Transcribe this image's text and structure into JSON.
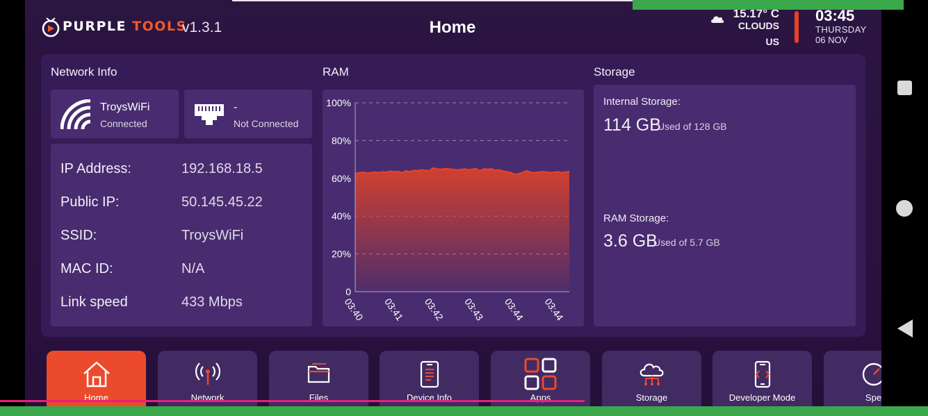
{
  "header": {
    "logo_text_1": "PURPLE",
    "logo_text_2": " TOOLS",
    "version": "v1.3.1",
    "title": "Home"
  },
  "weather": {
    "icon": "cloud-icon",
    "temperature": "15.17° C",
    "condition": "CLOUDS",
    "region": "US"
  },
  "clock": {
    "time": "03:45",
    "day": "THURSDAY",
    "date": "06 NOV"
  },
  "network_info": {
    "title": "Network Info",
    "wifi": {
      "name": "TroysWiFi",
      "status": "Connected",
      "icon": "wifi-icon"
    },
    "ethernet": {
      "name": "-",
      "status": "Not Connected",
      "icon": "ethernet-icon"
    },
    "rows": [
      {
        "label": "IP Address:",
        "value": "192.168.18.5"
      },
      {
        "label": "Public IP:",
        "value": "50.145.45.22"
      },
      {
        "label": "SSID:",
        "value": "TroysWiFi"
      },
      {
        "label": "MAC ID:",
        "value": "N/A"
      },
      {
        "label": "Link speed",
        "value": "433 Mbps"
      }
    ]
  },
  "ram": {
    "title": "RAM"
  },
  "chart_data": {
    "type": "area",
    "title": "",
    "xlabel": "",
    "ylabel": "",
    "ylim": [
      0,
      100
    ],
    "yticks": [
      "100%",
      "80%",
      "60%",
      "40%",
      "20%",
      "0"
    ],
    "xticks": [
      "03:40",
      "03:41",
      "03:42",
      "03:43",
      "03:44",
      "03:44"
    ],
    "grid": true,
    "values": [
      62.5,
      63.0,
      63.2,
      62.8,
      63.0,
      63.4,
      63.0,
      63.5,
      63.2,
      63.8,
      63.5,
      63.6,
      63.0,
      64.0,
      63.5,
      64.2,
      64.0,
      64.5,
      64.2,
      64.0,
      65.5,
      65.0,
      64.8,
      65.2,
      65.0,
      64.8,
      64.5,
      64.6,
      65.0,
      64.5,
      64.8,
      65.2,
      64.0,
      65.0,
      64.8,
      65.0,
      64.2,
      64.5,
      63.8,
      63.5,
      63.0,
      62.0,
      62.5,
      63.0,
      64.0,
      63.2,
      63.0,
      63.2,
      63.5,
      63.4,
      63.0,
      63.2,
      63.5,
      63.0,
      63.3,
      63.6
    ],
    "color": "#e2452c"
  },
  "storage": {
    "title": "Storage",
    "internal": {
      "label": "Internal Storage:",
      "used": "114 GB",
      "of_text": "Used of 128 GB"
    },
    "ram": {
      "label": "RAM Storage:",
      "used": "3.6 GB",
      "of_text": "Used of 5.7 GB"
    }
  },
  "nav": [
    {
      "label": "Home",
      "icon": "home-icon",
      "active": true
    },
    {
      "label": "Network",
      "icon": "antenna-icon",
      "active": false
    },
    {
      "label": "Files",
      "icon": "folder-icon",
      "active": false
    },
    {
      "label": "Device Info",
      "icon": "phone-info-icon",
      "active": false
    },
    {
      "label": "Apps",
      "icon": "apps-grid-icon",
      "active": false
    },
    {
      "label": "Storage",
      "icon": "cloud-storage-icon",
      "active": false
    },
    {
      "label": "Developer Mode",
      "icon": "developer-phone-icon",
      "active": false
    },
    {
      "label": "Spe",
      "icon": "speed-icon",
      "active": false
    }
  ],
  "colors": {
    "accent": "#ec4a2c",
    "background": "#2b1541",
    "card": "#361c57",
    "panel": "#482c6f"
  }
}
